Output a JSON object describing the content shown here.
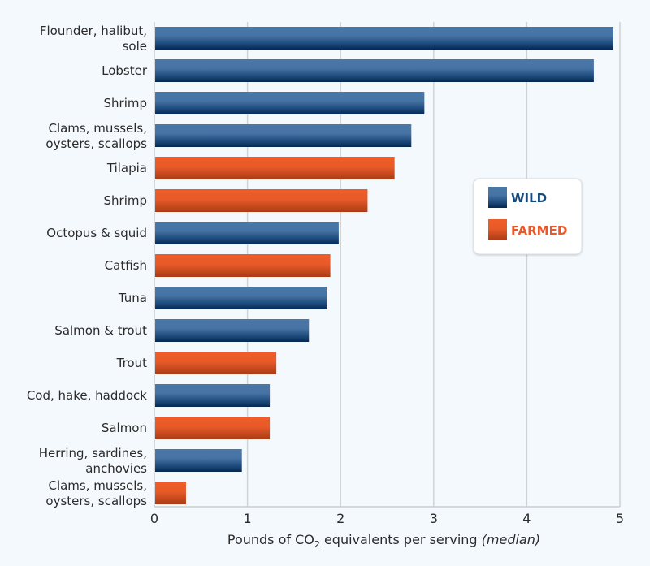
{
  "chart_data": {
    "type": "bar",
    "orientation": "horizontal",
    "title": "",
    "xlabel": "Pounds of CO2 equivalents per serving",
    "xlabel_parts": {
      "main": "Pounds of CO",
      "subscript": "2",
      "rest": " equivalents per serving ",
      "italic": "(median)"
    },
    "ylabel": "",
    "xlim": [
      0,
      5
    ],
    "xticks": [
      0,
      1,
      2,
      3,
      4,
      5
    ],
    "grid": true,
    "legend_position": "right",
    "legend": [
      {
        "name": "WILD",
        "color": "#1f4f82",
        "text_color": "#174a7c"
      },
      {
        "name": "FARMED",
        "color": "#e8582a",
        "text_color": "#e8582a"
      }
    ],
    "bars": [
      {
        "label": [
          "Flounder, halibut,",
          "sole"
        ],
        "type": "WILD",
        "value": 4.93
      },
      {
        "label": [
          "Lobster"
        ],
        "type": "WILD",
        "value": 4.72
      },
      {
        "label": [
          "Shrimp"
        ],
        "type": "WILD",
        "value": 2.9
      },
      {
        "label": [
          "Clams, mussels,",
          "oysters, scallops"
        ],
        "type": "WILD",
        "value": 2.76
      },
      {
        "label": [
          "Tilapia"
        ],
        "type": "FARMED",
        "value": 2.58
      },
      {
        "label": [
          "Shrimp"
        ],
        "type": "FARMED",
        "value": 2.29
      },
      {
        "label": [
          "Octopus & squid"
        ],
        "type": "WILD",
        "value": 1.98
      },
      {
        "label": [
          "Catfish"
        ],
        "type": "FARMED",
        "value": 1.89
      },
      {
        "label": [
          "Tuna"
        ],
        "type": "WILD",
        "value": 1.85
      },
      {
        "label": [
          "Salmon & trout"
        ],
        "type": "WILD",
        "value": 1.66
      },
      {
        "label": [
          "Trout"
        ],
        "type": "FARMED",
        "value": 1.31
      },
      {
        "label": [
          "Cod, hake, haddock"
        ],
        "type": "WILD",
        "value": 1.24
      },
      {
        "label": [
          "Salmon"
        ],
        "type": "FARMED",
        "value": 1.24
      },
      {
        "label": [
          "Herring, sardines,",
          "anchovies"
        ],
        "type": "WILD",
        "value": 0.94
      },
      {
        "label": [
          "Clams, mussels,",
          "oysters, scallops"
        ],
        "type": "FARMED",
        "value": 0.34
      }
    ]
  }
}
